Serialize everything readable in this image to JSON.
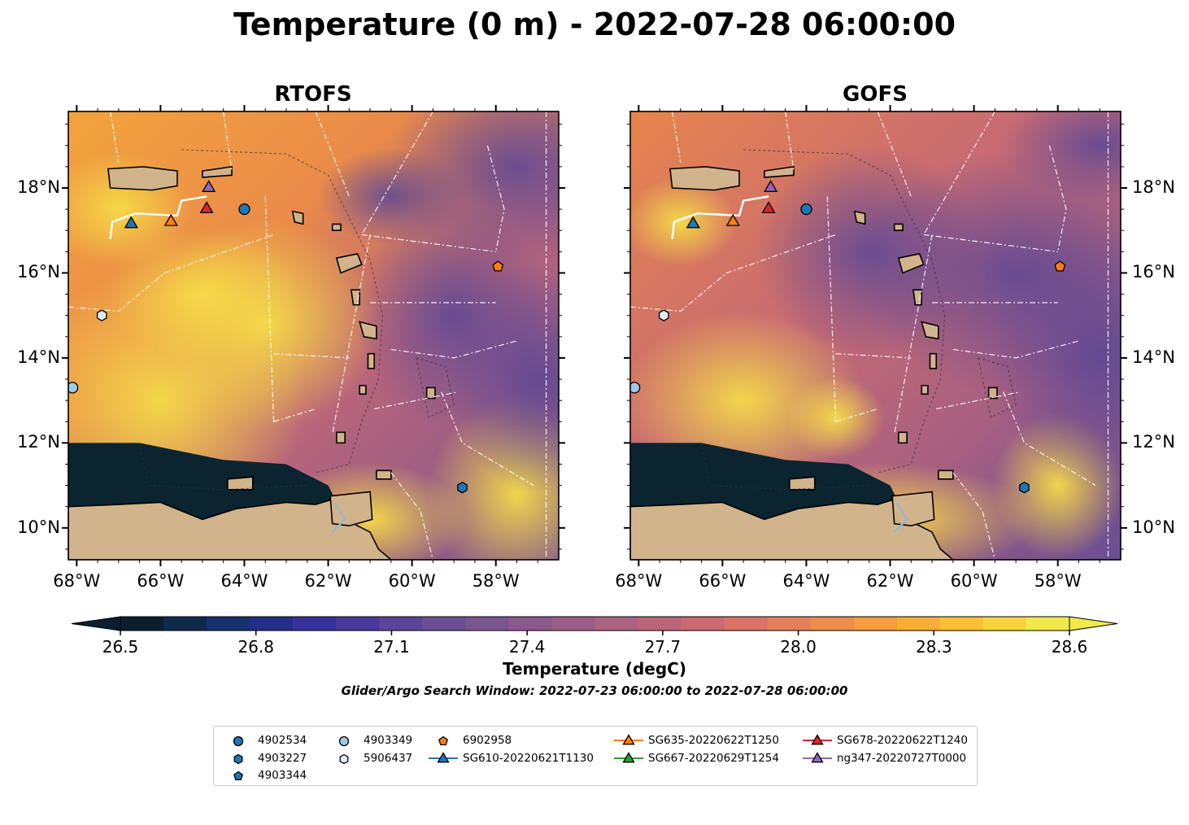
{
  "title": "Temperature (0 m) - 2022-07-28 06:00:00",
  "panels": [
    {
      "title": "RTOFS"
    },
    {
      "title": "GOFS"
    }
  ],
  "map": {
    "lon_range": [
      -68.2,
      -56.5
    ],
    "lat_range": [
      9.25,
      19.8
    ],
    "lon_ticks": [
      "68°W",
      "66°W",
      "64°W",
      "62°W",
      "60°W",
      "58°W"
    ],
    "lat_ticks": [
      "18°N",
      "16°N",
      "14°N",
      "12°N",
      "10°N"
    ],
    "land_color": "#d2b48c",
    "markers": [
      {
        "id": "4902534",
        "shape": "circle",
        "color": "#1f77b4",
        "lon": -64.0,
        "lat": 17.5
      },
      {
        "id": "4903227",
        "shape": "hexagon",
        "color": "#1f77b4",
        "lon": -58.8,
        "lat": 10.95
      },
      {
        "id": "4903349",
        "shape": "circle",
        "color": "#9ecae1",
        "lon": -68.1,
        "lat": 13.3
      },
      {
        "id": "5906437",
        "shape": "hexagon",
        "color": "#deebf7",
        "lon": -67.4,
        "lat": 15.0
      },
      {
        "id": "6902958",
        "shape": "pentagon",
        "color": "#ff7f0e",
        "lon": -57.95,
        "lat": 16.15
      },
      {
        "id": "SG610-20220621T1130",
        "shape": "triangle",
        "color": "#1f77b4",
        "lon": -66.7,
        "lat": 17.15
      },
      {
        "id": "SG635-20220622T1250",
        "shape": "triangle",
        "color": "#ff7f0e",
        "lon": -65.75,
        "lat": 17.2
      },
      {
        "id": "SG678-20220622T1240",
        "shape": "triangle",
        "color": "#d62728",
        "lon": -64.9,
        "lat": 17.5
      },
      {
        "id": "ng347-20220727T0000",
        "shape": "triangle",
        "color": "#9467bd",
        "lon": -64.85,
        "lat": 18.0
      }
    ]
  },
  "colorbar": {
    "label": "Temperature (degC)",
    "ticks": [
      "26.5",
      "26.8",
      "27.1",
      "27.4",
      "27.7",
      "28.0",
      "28.3",
      "28.6"
    ],
    "colors": [
      "#0a1f2e",
      "#0e2a4a",
      "#15306a",
      "#232f86",
      "#37329a",
      "#4a3a9a",
      "#5b4596",
      "#6a4e92",
      "#7a5590",
      "#8a5a8c",
      "#9a5e87",
      "#aa6281",
      "#ba667a",
      "#c96b70",
      "#d77466",
      "#e2805a",
      "#ec8e4c",
      "#f39d40",
      "#f8ae37",
      "#fbc035",
      "#f7d33d",
      "#efe94c"
    ]
  },
  "window_note": "Glider/Argo Search Window: 2022-07-23 06:00:00 to 2022-07-28 06:00:00",
  "legend": {
    "items": [
      {
        "label": "4902534",
        "shape": "circle",
        "color": "#1f77b4",
        "line": false
      },
      {
        "label": "4903227",
        "shape": "hexagon",
        "color": "#1f77b4",
        "line": false
      },
      {
        "label": "4903344",
        "shape": "pentagon",
        "color": "#1f77b4",
        "line": false
      },
      {
        "label": "4903349",
        "shape": "circle",
        "color": "#9ecae1",
        "line": false
      },
      {
        "label": "5906437",
        "shape": "hexagon",
        "color": "#deebf7",
        "line": false
      },
      {
        "label": "6902958",
        "shape": "pentagon",
        "color": "#ff7f0e",
        "line": false
      },
      {
        "label": "SG610-20220621T1130",
        "shape": "triangle",
        "color": "#1f77b4",
        "line": true
      },
      {
        "label": "SG635-20220622T1250",
        "shape": "triangle",
        "color": "#ff7f0e",
        "line": true
      },
      {
        "label": "SG667-20220629T1254",
        "shape": "triangle",
        "color": "#2ca02c",
        "line": true
      },
      {
        "label": "SG678-20220622T1240",
        "shape": "triangle",
        "color": "#d62728",
        "line": true
      },
      {
        "label": "ng347-20220727T0000",
        "shape": "triangle",
        "color": "#9467bd",
        "line": true
      }
    ]
  }
}
